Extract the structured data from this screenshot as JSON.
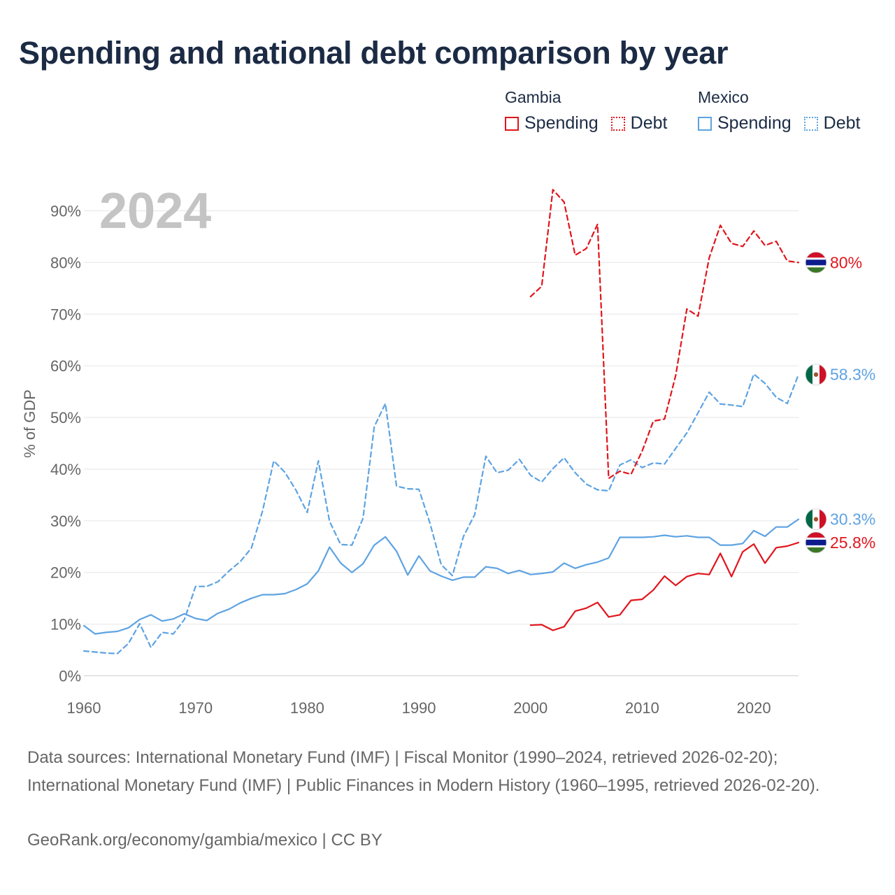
{
  "title": "Spending and national debt comparison by year",
  "legend": {
    "groups": [
      {
        "name": "Gambia",
        "color": "#e0161d",
        "items": [
          {
            "label": "Spending",
            "style": "solid"
          },
          {
            "label": "Debt",
            "style": "dotted"
          }
        ]
      },
      {
        "name": "Mexico",
        "color": "#5ea3e2",
        "items": [
          {
            "label": "Spending",
            "style": "solid"
          },
          {
            "label": "Debt",
            "style": "dotted"
          }
        ]
      }
    ]
  },
  "year_label": "2024",
  "sources": "Data sources: International Monetary Fund (IMF) | Fiscal Monitor (1990–2024, retrieved 2026-02-20); International Monetary Fund (IMF) | Public Finances in Modern History (1960–1995, retrieved 2026-02-20).",
  "credit": "GeoRank.org/economy/gambia/mexico | CC BY",
  "chart_data": {
    "type": "line",
    "title": "Spending and national debt comparison by year",
    "xlabel": "",
    "ylabel": "% of GDP",
    "xlim": [
      1960,
      2024
    ],
    "ylim": [
      0,
      90
    ],
    "x_ticks": [
      1960,
      1970,
      1980,
      1990,
      2000,
      2010,
      2020
    ],
    "y_ticks": [
      0,
      10,
      20,
      30,
      40,
      50,
      60,
      70,
      80,
      90
    ],
    "y_tick_labels": [
      "0%",
      "10%",
      "20%",
      "30%",
      "40%",
      "50%",
      "60%",
      "70%",
      "80%",
      "90%"
    ],
    "grid": true,
    "series": [
      {
        "name": "Mexico Spending",
        "country": "Mexico",
        "metric": "Spending",
        "color": "#5ea3e2",
        "dash": "solid",
        "end_label": "30.3%",
        "flag": "mexico-flag-icon",
        "x": [
          1960,
          1961,
          1962,
          1963,
          1964,
          1965,
          1966,
          1967,
          1968,
          1969,
          1970,
          1971,
          1972,
          1973,
          1974,
          1975,
          1976,
          1977,
          1978,
          1979,
          1980,
          1981,
          1982,
          1983,
          1984,
          1985,
          1986,
          1987,
          1988,
          1989,
          1990,
          1991,
          1992,
          1993,
          1994,
          1995,
          1996,
          1997,
          1998,
          1999,
          2000,
          2001,
          2002,
          2003,
          2004,
          2005,
          2006,
          2007,
          2008,
          2009,
          2010,
          2011,
          2012,
          2013,
          2014,
          2015,
          2016,
          2017,
          2018,
          2019,
          2020,
          2021,
          2022,
          2023,
          2024
        ],
        "values": [
          9.7,
          8.1,
          8.4,
          8.6,
          9.3,
          10.9,
          11.8,
          10.6,
          11.0,
          12.0,
          11.1,
          10.7,
          12.1,
          12.9,
          14.1,
          15.0,
          15.7,
          15.7,
          15.9,
          16.7,
          17.8,
          20.3,
          24.9,
          21.8,
          20.0,
          21.7,
          25.3,
          26.9,
          24.1,
          19.5,
          23.2,
          20.3,
          19.3,
          18.5,
          19.1,
          19.1,
          21.1,
          20.8,
          19.8,
          20.4,
          19.6,
          19.8,
          20.1,
          21.8,
          20.8,
          21.5,
          22.0,
          22.8,
          26.8,
          26.8,
          26.8,
          26.9,
          27.2,
          26.9,
          27.1,
          26.8,
          26.8,
          25.3,
          25.3,
          25.6,
          28.1,
          27.0,
          28.8,
          28.8,
          30.3
        ]
      },
      {
        "name": "Mexico Debt",
        "country": "Mexico",
        "metric": "Debt",
        "color": "#5ea3e2",
        "dash": "dashed",
        "end_label": "58.3%",
        "flag": "mexico-flag-icon",
        "x": [
          1960,
          1961,
          1962,
          1963,
          1964,
          1965,
          1966,
          1967,
          1968,
          1969,
          1970,
          1971,
          1972,
          1973,
          1974,
          1975,
          1976,
          1977,
          1978,
          1979,
          1980,
          1981,
          1982,
          1983,
          1984,
          1985,
          1986,
          1987,
          1988,
          1989,
          1990,
          1991,
          1992,
          1993,
          1994,
          1995,
          1996,
          1997,
          1998,
          1999,
          2000,
          2001,
          2002,
          2003,
          2004,
          2005,
          2006,
          2007,
          2008,
          2009,
          2010,
          2011,
          2012,
          2013,
          2014,
          2015,
          2016,
          2017,
          2018,
          2019,
          2020,
          2021,
          2022,
          2023,
          2024
        ],
        "values": [
          4.8,
          4.6,
          4.4,
          4.3,
          6.3,
          10.1,
          5.5,
          8.4,
          8.1,
          10.9,
          17.3,
          17.3,
          18.2,
          20.3,
          22.1,
          24.7,
          31.9,
          41.6,
          39.4,
          35.9,
          31.6,
          41.6,
          29.9,
          25.4,
          25.3,
          30.5,
          48.2,
          52.7,
          36.7,
          36.2,
          36.1,
          29.5,
          21.5,
          19.4,
          27.0,
          31.2,
          42.5,
          39.3,
          39.8,
          41.9,
          38.8,
          37.5,
          40.1,
          42.2,
          39.3,
          37.1,
          36.0,
          35.8,
          40.8,
          41.8,
          40.3,
          41.2,
          41.0,
          44.0,
          47.0,
          50.9,
          54.9,
          52.6,
          52.4,
          52.1,
          58.4,
          56.6,
          53.9,
          52.7,
          58.3
        ]
      },
      {
        "name": "Gambia Spending",
        "country": "Gambia",
        "metric": "Spending",
        "color": "#e0161d",
        "dash": "solid",
        "end_label": "25.8%",
        "flag": "gambia-flag-icon",
        "x": [
          2000,
          2001,
          2002,
          2003,
          2004,
          2005,
          2006,
          2007,
          2008,
          2009,
          2010,
          2011,
          2012,
          2013,
          2014,
          2015,
          2016,
          2017,
          2018,
          2019,
          2020,
          2021,
          2022,
          2023,
          2024
        ],
        "values": [
          9.8,
          9.9,
          8.8,
          9.5,
          12.5,
          13.1,
          14.2,
          11.4,
          11.8,
          14.6,
          14.8,
          16.6,
          19.3,
          17.5,
          19.2,
          19.8,
          19.6,
          23.7,
          19.2,
          24.0,
          25.5,
          21.8,
          24.8,
          25.1,
          25.8
        ]
      },
      {
        "name": "Gambia Debt",
        "country": "Gambia",
        "metric": "Debt",
        "color": "#e0161d",
        "dash": "dashed",
        "end_label": "80%",
        "flag": "gambia-flag-icon",
        "x": [
          2000,
          2001,
          2002,
          2003,
          2004,
          2005,
          2006,
          2007,
          2008,
          2009,
          2010,
          2011,
          2012,
          2013,
          2014,
          2015,
          2016,
          2017,
          2018,
          2019,
          2020,
          2021,
          2022,
          2023,
          2024
        ],
        "values": [
          73.4,
          75.4,
          94.1,
          91.7,
          81.4,
          82.7,
          87.4,
          38.2,
          39.6,
          39.0,
          43.5,
          49.3,
          49.7,
          58.1,
          71.0,
          69.6,
          80.9,
          87.2,
          83.7,
          83.1,
          86.1,
          83.3,
          84.1,
          80.3,
          80.0
        ]
      }
    ]
  }
}
